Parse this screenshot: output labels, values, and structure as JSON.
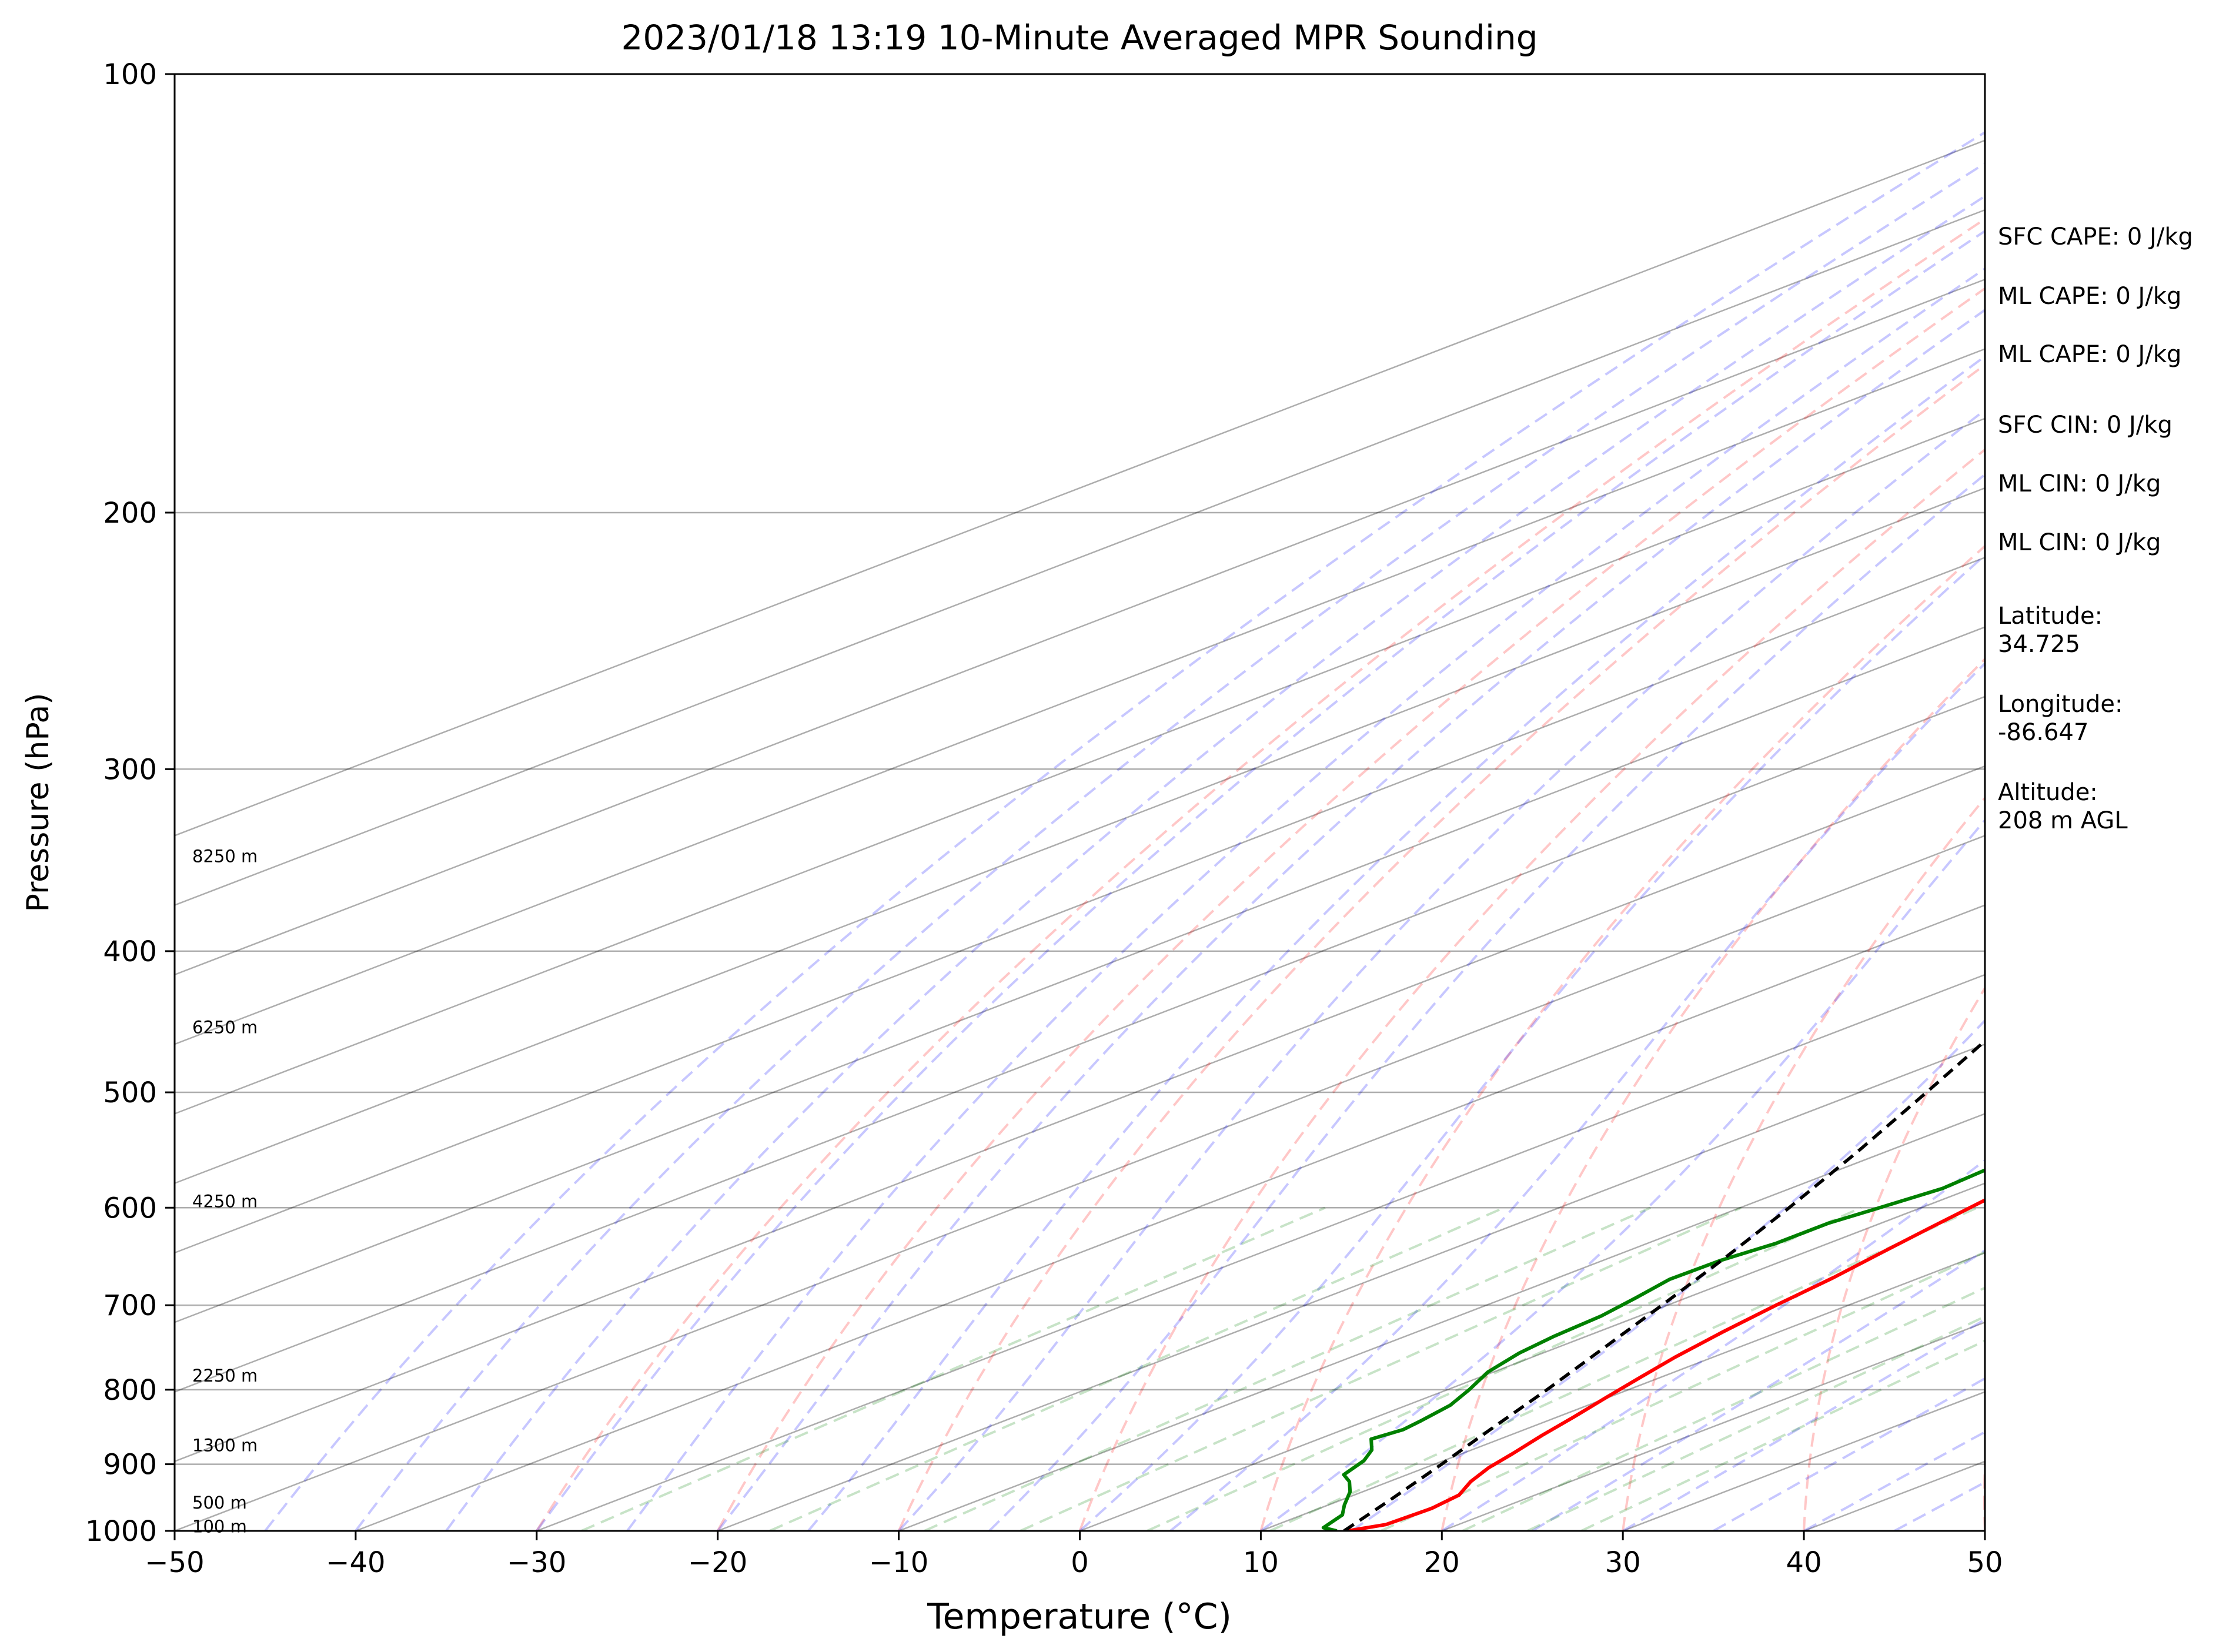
{
  "chart_data": {
    "type": "line",
    "subtype": "skew-t log-p sounding",
    "title": "2023/01/18 13:19 10-Minute Averaged MPR Sounding",
    "xlabel": "Temperature (°C)",
    "ylabel": "Pressure (hPa)",
    "xlim": [
      -50,
      50
    ],
    "ylim": [
      1000,
      100
    ],
    "y_scale": "log",
    "grid": true,
    "x_ticks": [
      "−50",
      "−40",
      "−30",
      "−20",
      "−10",
      "0",
      "10",
      "20",
      "30",
      "40",
      "50"
    ],
    "y_ticks": [
      "100",
      "200",
      "300",
      "400",
      "500",
      "600",
      "700",
      "800",
      "900",
      "1000"
    ],
    "height_labels": [
      {
        "text": "8250 m",
        "pressure": 345
      },
      {
        "text": "6250 m",
        "pressure": 452
      },
      {
        "text": "4250 m",
        "pressure": 595
      },
      {
        "text": "2250 m",
        "pressure": 784
      },
      {
        "text": "1300 m",
        "pressure": 875
      },
      {
        "text": "500 m",
        "pressure": 958
      },
      {
        "text": "100 m",
        "pressure": 995
      }
    ],
    "series": [
      {
        "name": "Temperature",
        "color": "#ff0000",
        "style": "solid",
        "points": [
          [
            14.8,
            1000
          ],
          [
            16.0,
            990
          ],
          [
            16.2,
            965
          ],
          [
            15.8,
            945
          ],
          [
            14.5,
            925
          ],
          [
            13.5,
            905
          ],
          [
            12.8,
            885
          ],
          [
            11.8,
            860
          ],
          [
            10.9,
            835
          ],
          [
            9.9,
            810
          ],
          [
            8.9,
            785
          ],
          [
            7.9,
            760
          ],
          [
            6.9,
            730
          ],
          [
            6.0,
            700
          ],
          [
            5.2,
            670
          ],
          [
            4.3,
            645
          ],
          [
            3.4,
            620
          ],
          [
            2.5,
            595
          ],
          [
            1.6,
            570
          ],
          [
            0.6,
            548
          ],
          [
            -0.5,
            527
          ],
          [
            -1.5,
            506
          ],
          [
            -2.6,
            487
          ],
          [
            -3.8,
            469
          ],
          [
            -5.0,
            452
          ],
          [
            -6.2,
            435
          ],
          [
            -7.5,
            419
          ],
          [
            -8.6,
            404
          ],
          [
            -9.8,
            390
          ],
          [
            -11.0,
            375
          ],
          [
            -12.2,
            362
          ],
          [
            -13.3,
            349
          ],
          [
            -14.5,
            337
          ],
          [
            -15.7,
            325
          ],
          [
            -16.8,
            314
          ],
          [
            -18.0,
            303
          ],
          [
            -19.2,
            293
          ],
          [
            -20.5,
            282
          ],
          [
            -22.0,
            271
          ],
          [
            -23.5,
            262
          ]
        ]
      },
      {
        "name": "Dewpoint",
        "color": "#008000",
        "style": "solid",
        "points": [
          [
            14.2,
            1000
          ],
          [
            13.0,
            995
          ],
          [
            12.2,
            975
          ],
          [
            10.9,
            960
          ],
          [
            9.3,
            940
          ],
          [
            7.8,
            925
          ],
          [
            6.5,
            915
          ],
          [
            5.6,
            895
          ],
          [
            4.5,
            880
          ],
          [
            2.9,
            865
          ],
          [
            3.3,
            852
          ],
          [
            3.0,
            840
          ],
          [
            2.4,
            820
          ],
          [
            1.2,
            800
          ],
          [
            -0.3,
            778
          ],
          [
            -1.3,
            755
          ],
          [
            -1.8,
            735
          ],
          [
            -2.1,
            712
          ],
          [
            -2.8,
            692
          ],
          [
            -3.6,
            672
          ],
          [
            -3.5,
            652
          ],
          [
            -2.9,
            635
          ],
          [
            -2.9,
            615
          ],
          [
            -2.3,
            600
          ],
          [
            -1.6,
            582
          ],
          [
            -1.9,
            565
          ],
          [
            -2.6,
            550
          ],
          [
            -3.7,
            535
          ],
          [
            -5.0,
            520
          ],
          [
            -5.8,
            505
          ],
          [
            -6.3,
            490
          ],
          [
            -7.0,
            475
          ],
          [
            -8.2,
            460
          ],
          [
            -9.8,
            445
          ],
          [
            -11.2,
            432
          ],
          [
            -12.0,
            420
          ],
          [
            -12.8,
            408
          ],
          [
            -13.7,
            395
          ],
          [
            -14.6,
            382
          ],
          [
            -15.5,
            370
          ],
          [
            -16.5,
            360
          ],
          [
            -17.5,
            350
          ],
          [
            -18.6,
            339
          ],
          [
            -19.6,
            328
          ],
          [
            -20.3,
            318
          ],
          [
            -22.6,
            305
          ],
          [
            -25.0,
            292
          ],
          [
            -27.5,
            280
          ],
          [
            -29.5,
            268
          ],
          [
            -29.8,
            262
          ]
        ]
      },
      {
        "name": "Parcel profile",
        "color": "#000000",
        "style": "dashed",
        "points": [
          [
            14.6,
            1000
          ],
          [
            12.6,
            950
          ],
          [
            10.4,
            900
          ],
          [
            8.0,
            850
          ],
          [
            5.5,
            800
          ],
          [
            2.7,
            750
          ],
          [
            -0.3,
            700
          ],
          [
            -3.6,
            650
          ],
          [
            -7.3,
            600
          ],
          [
            -11.5,
            550
          ],
          [
            -16.3,
            500
          ],
          [
            -21.7,
            450
          ],
          [
            -27.8,
            400
          ],
          [
            -34.8,
            350
          ],
          [
            -43.0,
            300
          ],
          [
            -48.6,
            270
          ]
        ]
      }
    ],
    "reference_lines": {
      "isotherms": {
        "color": "#000000",
        "style": "solid",
        "alpha": 0.3
      },
      "dry_adiabats": {
        "color": "#ff0000",
        "style": "dashed",
        "alpha": 0.25
      },
      "moist_adiabats": {
        "color": "#0000ff",
        "style": "dashed",
        "alpha": 0.25
      },
      "mixing_ratio_lines": {
        "color": "#008000",
        "style": "dashed",
        "alpha": 0.2
      }
    }
  },
  "side_panel": {
    "sfc_cape": "SFC CAPE: 0 J/kg",
    "ml_cape": "ML CAPE: 0 J/kg",
    "ml_cape_2": "ML CAPE: 0 J/kg",
    "sfc_cin": "SFC CIN: 0 J/kg",
    "ml_cin": "ML CIN: 0 J/kg",
    "ml_cin_2": "ML CIN: 0 J/kg",
    "latitude_label": "Latitude:",
    "latitude_value": "34.725",
    "longitude_label": "Longitude:",
    "longitude_value": "-86.647",
    "altitude_label": "Altitude:",
    "altitude_value": "208 m AGL"
  }
}
